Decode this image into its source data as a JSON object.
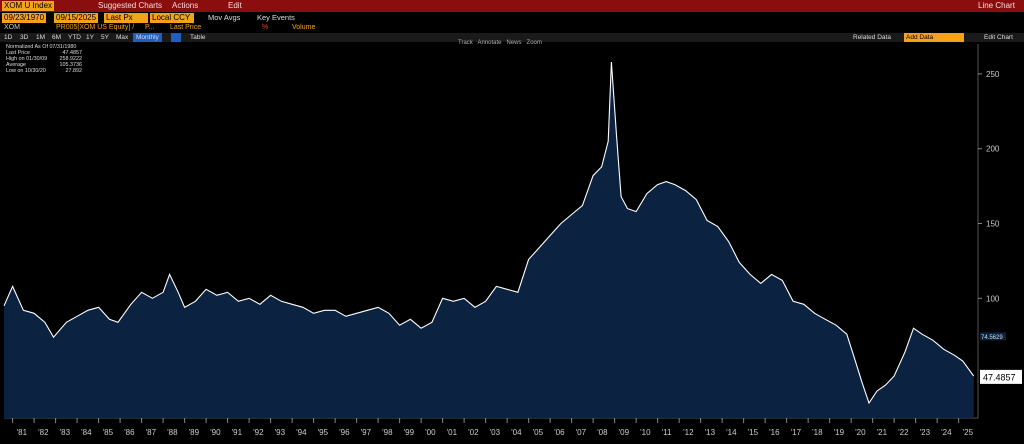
{
  "header": {
    "security": "XOM U Index",
    "suggested": "Suggested Charts",
    "actions": "Actions",
    "edit": "Edit",
    "chart_label": "Line Chart"
  },
  "controls": {
    "start_date": "09/23/1970",
    "end_date": "09/15/2025",
    "field": "Last Px",
    "currency": "Local CCY",
    "mov_avgs": "Mov Avgs",
    "key_events": "Key Events"
  },
  "series_row": {
    "ticker": "XOM",
    "expr": "PR005[XOM US Equity] /",
    "expr2": "P...",
    "last_price": "Last Price",
    "pct": "%",
    "volume": "Volume"
  },
  "periods": [
    "1D",
    "3D",
    "1M",
    "6M",
    "YTD",
    "1Y",
    "5Y",
    "Max"
  ],
  "period_selected": "Monthly",
  "table_label": "Table",
  "related_data": "Related Data",
  "add_data": "Add Data",
  "edit_chart": "Edit Chart",
  "toolbar_tools": [
    "Track",
    "Annotate",
    "News",
    "Zoom"
  ],
  "legend": {
    "title": "Normalized As Of 07/31/1980",
    "rows": [
      {
        "label": "Last Price",
        "value": "47.4857"
      },
      {
        "label": "High on 01/30/09",
        "value": "258.9222"
      },
      {
        "label": "Average",
        "value": "105.3736"
      },
      {
        "label": "Low on 10/30/20",
        "value": "27.892"
      }
    ]
  },
  "right_labels": {
    "last": "47.4857",
    "small": "74.5629"
  },
  "colors": {
    "line": "#ffffff",
    "fill": "#0b2340",
    "header_red": "#8b0e0e",
    "orange": "#f4a11c"
  },
  "chart_data": {
    "type": "area",
    "x": [
      1980.6,
      1981.0,
      1981.5,
      1982.0,
      1982.5,
      1982.9,
      1983.5,
      1984.0,
      1984.5,
      1985.0,
      1985.5,
      1985.9,
      1986.5,
      1987.0,
      1987.5,
      1988.0,
      1988.3,
      1988.7,
      1989.0,
      1989.5,
      1990.0,
      1990.5,
      1991.0,
      1991.5,
      1992.0,
      1992.5,
      1993.0,
      1993.5,
      1994.0,
      1994.5,
      1995.0,
      1995.5,
      1996.0,
      1996.5,
      1997.0,
      1997.5,
      1998.0,
      1998.5,
      1999.0,
      1999.5,
      2000.0,
      2000.5,
      2001.0,
      2001.5,
      2002.0,
      2002.5,
      2003.0,
      2003.5,
      2004.0,
      2004.5,
      2005.0,
      2005.5,
      2006.0,
      2006.5,
      2007.0,
      2007.5,
      2008.0,
      2008.4,
      2008.7,
      2008.85,
      2009.08,
      2009.3,
      2009.6,
      2010.0,
      2010.5,
      2011.0,
      2011.4,
      2011.8,
      2012.3,
      2012.8,
      2013.3,
      2013.8,
      2014.3,
      2014.8,
      2015.3,
      2015.8,
      2016.3,
      2016.8,
      2017.3,
      2017.8,
      2018.3,
      2018.8,
      2019.3,
      2019.8,
      2020.2,
      2020.5,
      2020.83,
      2021.2,
      2021.6,
      2022.0,
      2022.5,
      2022.9,
      2023.3,
      2023.8,
      2024.3,
      2024.8,
      2025.2,
      2025.7
    ],
    "values": [
      95,
      108,
      92,
      90,
      84,
      74,
      84,
      88,
      92,
      94,
      86,
      84,
      96,
      104,
      100,
      104,
      116,
      104,
      94,
      98,
      106,
      102,
      104,
      98,
      100,
      96,
      102,
      98,
      96,
      94,
      90,
      92,
      92,
      88,
      90,
      92,
      94,
      90,
      82,
      86,
      80,
      84,
      100,
      98,
      100,
      94,
      98,
      108,
      106,
      104,
      126,
      134,
      142,
      150,
      156,
      162,
      182,
      188,
      205,
      258,
      210,
      168,
      160,
      158,
      170,
      176,
      178,
      176,
      172,
      166,
      152,
      148,
      138,
      124,
      116,
      110,
      116,
      112,
      98,
      96,
      90,
      86,
      82,
      76,
      58,
      44,
      30,
      38,
      42,
      48,
      64,
      80,
      76,
      72,
      66,
      62,
      58,
      48
    ],
    "ylim": [
      20,
      270
    ],
    "y_ticks": [
      100,
      150,
      200,
      250
    ],
    "x_tick_labels": [
      "'81",
      "'82",
      "'83",
      "'84",
      "'85",
      "'86",
      "'87",
      "'88",
      "'89",
      "'90",
      "'91",
      "'92",
      "'93",
      "'94",
      "'95",
      "'96",
      "'97",
      "'98",
      "'99",
      "'00",
      "'01",
      "'02",
      "'03",
      "'04",
      "'05",
      "'06",
      "'07",
      "'08",
      "'09",
      "'10",
      "'11",
      "'12",
      "'13",
      "'14",
      "'15",
      "'16",
      "'17",
      "'18",
      "'19",
      "'20",
      "'21",
      "'22",
      "'23",
      "'24",
      "'25"
    ],
    "last_value": 47.4857,
    "grid": false
  }
}
